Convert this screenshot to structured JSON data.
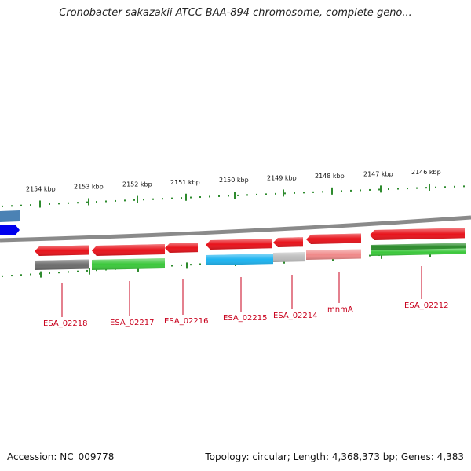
{
  "title": "Cronobacter sakazakii ATCC BAA-894 chromosome, complete geno...",
  "footer": {
    "accession_label": "Accession:",
    "accession_value": "NC_009778",
    "topology_text": "Topology: circular; Length: 4,368,373 bp; Genes: 4,383"
  },
  "scale_labels": [
    "2154 kbp",
    "2153 kbp",
    "2152 kbp",
    "2151 kbp",
    "2150 kbp",
    "2149 kbp",
    "2148 kbp",
    "2147 kbp",
    "2146 kbp"
  ],
  "gene_labels": [
    "ESA_02218",
    "ESA_02217",
    "ESA_02216",
    "ESA_02215",
    "ESA_02214",
    "mnmA",
    "ESA_02212"
  ],
  "colors": {
    "backbone": "#8a8a8a",
    "tick": "#2e8b2e",
    "gene_red": "#e8141c",
    "gene_green": "#3cc83c",
    "gene_gray": "#6c6c6c",
    "gene_blue": "#1eb4f0",
    "gene_lightgray": "#bdbdbd",
    "gene_pink": "#f08a8a",
    "gene_darkgreen": "#2c8c2c",
    "partial_blue": "#0000ee",
    "partial_steelblue": "#4b82b4",
    "label_red": "#c8001c"
  }
}
